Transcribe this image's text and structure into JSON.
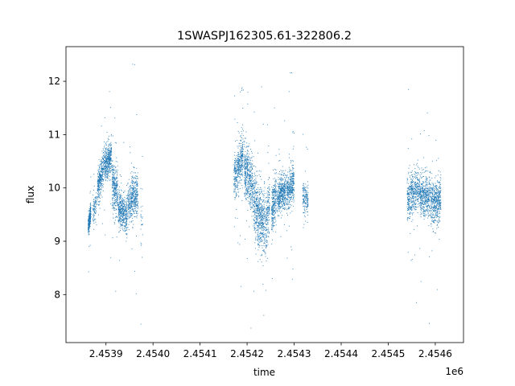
{
  "chart_data": {
    "type": "scatter",
    "title": "1SWASPJ162305.61-322806.2",
    "xlabel": "time",
    "ylabel": "flux",
    "x_offset_label": "1e6",
    "x_scale": 1000000,
    "xlim": [
      2453815,
      2454660
    ],
    "ylim": [
      7.1,
      12.65
    ],
    "x_ticks": [
      2453900,
      2454000,
      2454100,
      2454200,
      2454300,
      2454400,
      2454500,
      2454600
    ],
    "x_tick_labels": [
      "2.4539",
      "2.4540",
      "2.4541",
      "2.4542",
      "2.4543",
      "2.4544",
      "2.4545",
      "2.4546"
    ],
    "y_ticks": [
      8,
      9,
      10,
      11,
      12
    ],
    "y_tick_labels": [
      "8",
      "9",
      "10",
      "11",
      "12"
    ],
    "grid": false,
    "legend": "none",
    "marker_color": "#1f77b4",
    "series": [
      {
        "segments": [
          {
            "x": [
              2453862,
              2453868
            ],
            "center": [
              9.25,
              9.55
            ],
            "spread": 0.16,
            "count": 260
          },
          {
            "x": [
              2453872,
              2453880
            ],
            "center": [
              9.55,
              9.75
            ],
            "spread": 0.22,
            "count": 90
          },
          {
            "x": [
              2453882,
              2453895
            ],
            "center": [
              10.0,
              10.35
            ],
            "spread": 0.3,
            "count": 330
          },
          {
            "x": [
              2453896,
              2453912
            ],
            "center": [
              10.4,
              10.6
            ],
            "spread": 0.28,
            "count": 420
          },
          {
            "x": [
              2453913,
              2453925
            ],
            "center": [
              10.1,
              9.9
            ],
            "spread": 0.4,
            "count": 300
          },
          {
            "x": [
              2453926,
              2453945
            ],
            "center": [
              9.6,
              9.5
            ],
            "spread": 0.3,
            "count": 420
          },
          {
            "x": [
              2453946,
              2453968
            ],
            "center": [
              9.7,
              9.9
            ],
            "spread": 0.35,
            "count": 450
          },
          {
            "x": [
              2453974,
              2453978
            ],
            "center": [
              9.5,
              9.5
            ],
            "spread": 0.5,
            "count": 25
          },
          {
            "x": [
              2454172,
              2454192
            ],
            "center": [
              10.2,
              10.6
            ],
            "spread": 0.4,
            "count": 450
          },
          {
            "x": [
              2454194,
              2454212
            ],
            "center": [
              10.4,
              10.0
            ],
            "spread": 0.45,
            "count": 450
          },
          {
            "x": [
              2454213,
              2454238
            ],
            "center": [
              9.7,
              9.3
            ],
            "spread": 0.55,
            "count": 600
          },
          {
            "x": [
              2454239,
              2454248
            ],
            "center": [
              9.3,
              9.8
            ],
            "spread": 0.5,
            "count": 180
          },
          {
            "x": [
              2454252,
              2454262
            ],
            "center": [
              9.5,
              9.9
            ],
            "spread": 0.4,
            "count": 260
          },
          {
            "x": [
              2454264,
              2454282
            ],
            "center": [
              9.8,
              10.0
            ],
            "spread": 0.3,
            "count": 420
          },
          {
            "x": [
              2454284,
              2454300
            ],
            "center": [
              9.9,
              10.1
            ],
            "spread": 0.3,
            "count": 380
          },
          {
            "x": [
              2454318,
              2454330
            ],
            "center": [
              9.9,
              9.7
            ],
            "spread": 0.3,
            "count": 160
          },
          {
            "x": [
              2454540,
              2454565
            ],
            "center": [
              9.8,
              10.0
            ],
            "spread": 0.35,
            "count": 450
          },
          {
            "x": [
              2454566,
              2454590
            ],
            "center": [
              9.9,
              9.8
            ],
            "spread": 0.35,
            "count": 480
          },
          {
            "x": [
              2454591,
              2454612
            ],
            "center": [
              9.7,
              9.8
            ],
            "spread": 0.35,
            "count": 450
          }
        ]
      }
    ]
  }
}
